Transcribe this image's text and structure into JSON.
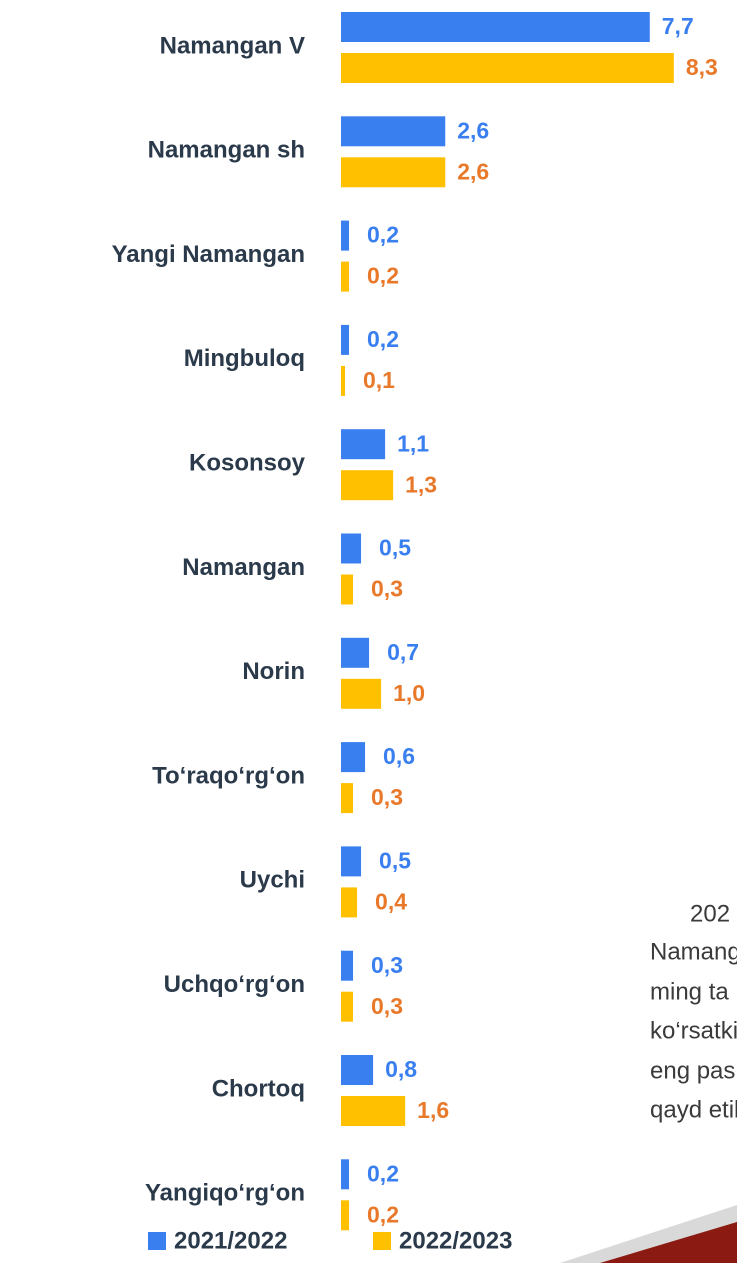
{
  "chart_data": {
    "type": "bar",
    "orientation": "horizontal",
    "categories": [
      "Namangan V",
      "Namangan sh",
      "Yangi Namangan",
      "Mingbuloq",
      "Kosonsoy",
      "Namangan",
      "Norin",
      "To‘raqo‘rg‘on",
      "Uychi",
      "Uchqo‘rg‘on",
      "Chortoq",
      "Yangiqo‘rg‘on"
    ],
    "series": [
      {
        "name": "2021/2022",
        "color": "#3a7ff0",
        "label_color": "#3a7ff0",
        "values": [
          7.7,
          2.6,
          0.2,
          0.2,
          1.1,
          0.5,
          0.7,
          0.6,
          0.5,
          0.3,
          0.8,
          0.2
        ],
        "value_labels": [
          "7,7",
          "2,6",
          "0,2",
          "0,2",
          "1,1",
          "0,5",
          "0,7",
          "0,6",
          "0,5",
          "0,3",
          "0,8",
          "0,2"
        ]
      },
      {
        "name": "2022/2023",
        "color": "#ffc000",
        "label_color": "#e8792a",
        "values": [
          8.3,
          2.6,
          0.2,
          0.1,
          1.3,
          0.3,
          1.0,
          0.3,
          0.4,
          0.3,
          1.6,
          0.2
        ],
        "value_labels": [
          "8,3",
          "2,6",
          "0,2",
          "0,1",
          "1,3",
          "0,3",
          "1,0",
          "0,3",
          "0,4",
          "0,3",
          "1,6",
          "0,2"
        ]
      }
    ],
    "legend": "bottom",
    "annotations": [
      "202",
      "Namang",
      "ming ta",
      "ko‘rsatki",
      "eng pas",
      "qayd etil"
    ]
  }
}
